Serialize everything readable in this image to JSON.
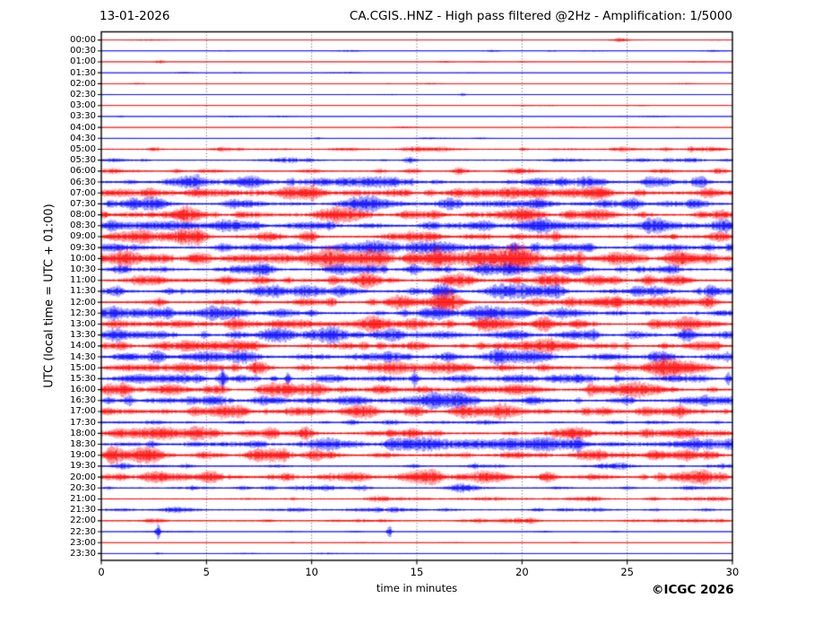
{
  "header": {
    "date": "13-01-2026",
    "title": "CA.CGIS..HNZ - High pass filtered @2Hz - Amplification: 1/5000"
  },
  "footer": {
    "copyright": "©ICGC 2026"
  },
  "chart_data": {
    "type": "line",
    "subtype": "helicorder-seismogram",
    "title": "CA.CGIS..HNZ - High pass filtered @2Hz - Amplification: 1/5000",
    "date": "13-01-2026",
    "xlabel": "time in minutes",
    "ylabel": "UTC (local time = UTC + 01:00)",
    "x_range": [
      0,
      30
    ],
    "x_ticks": [
      0,
      5,
      10,
      15,
      20,
      25,
      30
    ],
    "grid_minutes": [
      5,
      10,
      15,
      20,
      25
    ],
    "grid": "dotted-vertical",
    "legend": "none",
    "colors": {
      "hour_trace": "#ff0000",
      "half_hour_trace": "#0000ff",
      "grid": "#444444",
      "frame": "#000000",
      "text": "#000000"
    },
    "row_note": "48 half-hour trace rows; c=r red hour rows, c=b blue half-hour rows; lv=background noise level 0..3; ev=[minute, amplitude_px, width_px] notable bursts/spikes",
    "rows": [
      {
        "t": "00:00",
        "c": "r",
        "lv": 0,
        "ev": [
          [
            24.7,
            1.6,
            5
          ]
        ]
      },
      {
        "t": "00:30",
        "c": "b",
        "lv": 0,
        "ev": [
          [
            18.6,
            1.1,
            7
          ],
          [
            21.4,
            0.8,
            6
          ]
        ]
      },
      {
        "t": "01:00",
        "c": "r",
        "lv": 0,
        "ev": [
          [
            2.8,
            1.7,
            5
          ],
          [
            16.3,
            0.7,
            9
          ]
        ]
      },
      {
        "t": "01:30",
        "c": "b",
        "lv": 0,
        "ev": [
          [
            11.5,
            0.5,
            30
          ]
        ]
      },
      {
        "t": "02:00",
        "c": "r",
        "lv": 0,
        "ev": []
      },
      {
        "t": "02:30",
        "c": "b",
        "lv": 0,
        "ev": [
          [
            17.2,
            1.5,
            4
          ]
        ]
      },
      {
        "t": "03:00",
        "c": "r",
        "lv": 0,
        "ev": []
      },
      {
        "t": "03:30",
        "c": "b",
        "lv": 0,
        "ev": [
          [
            0.9,
            0.9,
            4
          ]
        ]
      },
      {
        "t": "04:00",
        "c": "r",
        "lv": 0,
        "ev": []
      },
      {
        "t": "04:30",
        "c": "b",
        "lv": 0,
        "ev": [
          [
            10.3,
            0.9,
            5
          ],
          [
            15.5,
            0.6,
            10
          ]
        ]
      },
      {
        "t": "05:00",
        "c": "r",
        "lv": 1,
        "ev": [
          [
            2.6,
            1.1,
            6
          ],
          [
            20.1,
            1.5,
            5
          ]
        ]
      },
      {
        "t": "05:30",
        "c": "b",
        "lv": 1,
        "ev": [
          [
            2.1,
            1.2,
            6
          ],
          [
            14.7,
            1.7,
            7
          ],
          [
            26.9,
            1.4,
            7
          ]
        ]
      },
      {
        "t": "06:00",
        "c": "r",
        "lv": 1,
        "ev": [
          [
            3.6,
            1.5,
            7
          ],
          [
            13.3,
            2.1,
            7
          ],
          [
            17.0,
            1.9,
            7
          ],
          [
            29.3,
            2.3,
            6
          ]
        ]
      },
      {
        "t": "06:30",
        "c": "b",
        "lv": 2,
        "ev": [
          [
            1.4,
            1.7,
            7
          ],
          [
            14.7,
            2.5,
            8
          ],
          [
            26.9,
            2.1,
            8
          ]
        ]
      },
      {
        "t": "07:00",
        "c": "r",
        "lv": 2,
        "ev": [
          [
            2.3,
            1.9,
            8
          ],
          [
            16.9,
            2.3,
            8
          ],
          [
            28.8,
            3.0,
            9
          ]
        ]
      },
      {
        "t": "07:30",
        "c": "b",
        "lv": 2,
        "ev": [
          [
            1.5,
            3.8,
            6
          ],
          [
            6.2,
            2.1,
            8
          ],
          [
            20.6,
            1.9,
            8
          ],
          [
            28.2,
            2.3,
            8
          ]
        ]
      },
      {
        "t": "08:00",
        "c": "r",
        "lv": 2,
        "ev": [
          [
            4.1,
            2.1,
            8
          ],
          [
            6.6,
            1.9,
            7
          ],
          [
            28.5,
            2.8,
            8
          ]
        ]
      },
      {
        "t": "08:30",
        "c": "b",
        "lv": 2,
        "ev": [
          [
            0.5,
            2.1,
            7
          ],
          [
            7.4,
            2.3,
            8
          ],
          [
            21.0,
            1.7,
            8
          ]
        ]
      },
      {
        "t": "09:00",
        "c": "r",
        "lv": 2,
        "ev": [
          [
            4.6,
            2.1,
            8
          ],
          [
            9.8,
            2.0,
            7
          ],
          [
            19.8,
            2.6,
            8
          ],
          [
            29.5,
            2.6,
            7
          ]
        ]
      },
      {
        "t": "09:30",
        "c": "b",
        "lv": 2,
        "ev": [
          [
            0.6,
            1.7,
            7
          ],
          [
            9.4,
            2.1,
            7
          ],
          [
            14.7,
            2.1,
            7
          ],
          [
            29.9,
            2.5,
            5
          ]
        ]
      },
      {
        "t": "10:00",
        "c": "r",
        "lv": 3,
        "ev": [
          [
            2.6,
            2.3,
            9
          ],
          [
            5.0,
            2.1,
            8
          ],
          [
            25.2,
            2.5,
            8
          ]
        ]
      },
      {
        "t": "10:30",
        "c": "b",
        "lv": 2,
        "ev": [
          [
            13.0,
            1.9,
            8
          ],
          [
            25.6,
            2.1,
            8
          ],
          [
            29.9,
            2.3,
            5
          ]
        ]
      },
      {
        "t": "11:00",
        "c": "r",
        "lv": 2,
        "ev": [
          [
            1.7,
            1.7,
            8
          ],
          [
            23.5,
            1.9,
            8
          ]
        ]
      },
      {
        "t": "11:30",
        "c": "b",
        "lv": 2,
        "ev": [
          [
            3.2,
            2.7,
            7
          ],
          [
            11.4,
            2.7,
            7
          ],
          [
            14.8,
            2.5,
            7
          ],
          [
            21.8,
            2.5,
            7
          ],
          [
            29.9,
            2.7,
            5
          ]
        ]
      },
      {
        "t": "12:00",
        "c": "r",
        "lv": 2,
        "ev": [
          [
            6.5,
            3.2,
            6
          ],
          [
            28.6,
            2.1,
            8
          ]
        ]
      },
      {
        "t": "12:30",
        "c": "b",
        "lv": 2,
        "ev": [
          [
            3.1,
            2.3,
            7
          ],
          [
            10.0,
            1.9,
            8
          ],
          [
            14.4,
            2.1,
            8
          ],
          [
            21.5,
            2.3,
            8
          ]
        ]
      },
      {
        "t": "13:00",
        "c": "r",
        "lv": 2,
        "ev": [
          [
            6.4,
            2.7,
            6
          ],
          [
            16.6,
            2.9,
            7
          ]
        ]
      },
      {
        "t": "13:30",
        "c": "b",
        "lv": 2,
        "ev": [
          [
            3.0,
            1.9,
            8
          ],
          [
            14.0,
            2.1,
            8
          ],
          [
            23.3,
            2.1,
            8
          ]
        ]
      },
      {
        "t": "14:00",
        "c": "r",
        "lv": 2,
        "ev": [
          [
            6.3,
            2.3,
            7
          ],
          [
            14.9,
            2.7,
            7
          ],
          [
            26.8,
            2.3,
            8
          ]
        ]
      },
      {
        "t": "14:30",
        "c": "b",
        "lv": 2,
        "ev": [
          [
            1.5,
            2.5,
            7
          ],
          [
            16.5,
            2.1,
            8
          ],
          [
            28.9,
            1.9,
            8
          ]
        ]
      },
      {
        "t": "15:00",
        "c": "r",
        "lv": 2,
        "ev": [
          [
            1.2,
            2.1,
            8
          ],
          [
            16.7,
            2.7,
            8
          ],
          [
            17.4,
            2.3,
            7
          ],
          [
            21.0,
            2.1,
            8
          ]
        ]
      },
      {
        "t": "15:30",
        "c": "b",
        "lv": 2,
        "ev": [
          [
            5.8,
            6.5,
            2.6
          ],
          [
            8.9,
            7.5,
            2.6
          ],
          [
            14.9,
            7.0,
            2.6
          ],
          [
            29.8,
            7.0,
            2.6
          ],
          [
            13.5,
            1.9,
            8
          ],
          [
            21.5,
            1.7,
            8
          ]
        ]
      },
      {
        "t": "16:00",
        "c": "r",
        "lv": 2,
        "ev": [
          [
            1.1,
            2.9,
            6
          ],
          [
            5.7,
            2.7,
            6
          ],
          [
            25.5,
            1.9,
            8
          ],
          [
            29.0,
            2.3,
            7
          ]
        ]
      },
      {
        "t": "16:30",
        "c": "b",
        "lv": 2,
        "ev": [
          [
            1.3,
            2.7,
            6
          ],
          [
            5.3,
            1.9,
            8
          ],
          [
            28.7,
            2.5,
            7
          ]
        ]
      },
      {
        "t": "17:00",
        "c": "r",
        "lv": 2,
        "ev": [
          [
            3.1,
            2.3,
            7
          ],
          [
            19.0,
            2.1,
            8
          ],
          [
            25.8,
            1.9,
            8
          ]
        ]
      },
      {
        "t": "17:30",
        "c": "b",
        "lv": 1,
        "ev": [
          [
            2.5,
            1.3,
            8
          ],
          [
            12.0,
            1.5,
            8
          ],
          [
            29.3,
            1.5,
            7
          ]
        ]
      },
      {
        "t": "18:00",
        "c": "r",
        "lv": 2,
        "ev": [
          [
            6.9,
            2.1,
            9
          ],
          [
            19.5,
            1.9,
            8
          ],
          [
            23.0,
            1.7,
            8
          ]
        ]
      },
      {
        "t": "18:30",
        "c": "b",
        "lv": 2,
        "ev": [
          [
            2.4,
            3.2,
            5
          ],
          [
            13.8,
            1.9,
            8
          ],
          [
            28.9,
            2.1,
            8
          ]
        ]
      },
      {
        "t": "19:00",
        "c": "r",
        "lv": 2,
        "ev": [
          [
            0.8,
            1.9,
            8
          ],
          [
            21.0,
            1.7,
            8
          ],
          [
            26.5,
            1.9,
            8
          ]
        ]
      },
      {
        "t": "19:30",
        "c": "b",
        "lv": 1,
        "ev": [
          [
            0.9,
            1.5,
            8
          ],
          [
            14.9,
            1.7,
            8
          ],
          [
            23.8,
            1.7,
            8
          ]
        ]
      },
      {
        "t": "20:00",
        "c": "r",
        "lv": 2,
        "ev": [
          [
            0.9,
            2.1,
            9
          ],
          [
            18.5,
            1.7,
            8
          ],
          [
            28.6,
            3.0,
            6
          ]
        ]
      },
      {
        "t": "20:30",
        "c": "b",
        "lv": 1,
        "ev": [
          [
            12.4,
            1.7,
            9
          ],
          [
            25.0,
            1.5,
            8
          ],
          [
            28.0,
            1.5,
            8
          ]
        ]
      },
      {
        "t": "21:00",
        "c": "r",
        "lv": 1,
        "ev": [
          [
            9.0,
            1.3,
            8
          ],
          [
            18.0,
            1.3,
            8
          ],
          [
            23.5,
            1.3,
            8
          ]
        ]
      },
      {
        "t": "21:30",
        "c": "b",
        "lv": 1,
        "ev": [
          [
            12.0,
            1.2,
            14
          ],
          [
            20.8,
            1.4,
            8
          ],
          [
            26.3,
            1.4,
            8
          ]
        ]
      },
      {
        "t": "22:00",
        "c": "r",
        "lv": 1,
        "ev": [
          [
            7.9,
            1.3,
            8
          ],
          [
            18.0,
            1.5,
            8
          ],
          [
            20.5,
            1.3,
            8
          ],
          [
            29.5,
            1.6,
            5
          ]
        ]
      },
      {
        "t": "22:30",
        "c": "b",
        "lv": 0,
        "ev": [
          [
            2.7,
            7.5,
            2.6
          ],
          [
            13.7,
            7.0,
            2.6
          ],
          [
            9.0,
            0.7,
            9
          ],
          [
            21.0,
            0.9,
            9
          ],
          [
            24.5,
            0.8,
            7
          ]
        ]
      },
      {
        "t": "23:00",
        "c": "r",
        "lv": 0,
        "ev": [
          [
            9.0,
            0.7,
            5
          ],
          [
            12.4,
            0.7,
            4
          ],
          [
            22.5,
            0.6,
            5
          ]
        ]
      },
      {
        "t": "23:30",
        "c": "b",
        "lv": 0,
        "ev": [
          [
            2.7,
            1.1,
            5
          ],
          [
            19.0,
            0.5,
            9
          ]
        ]
      }
    ]
  }
}
